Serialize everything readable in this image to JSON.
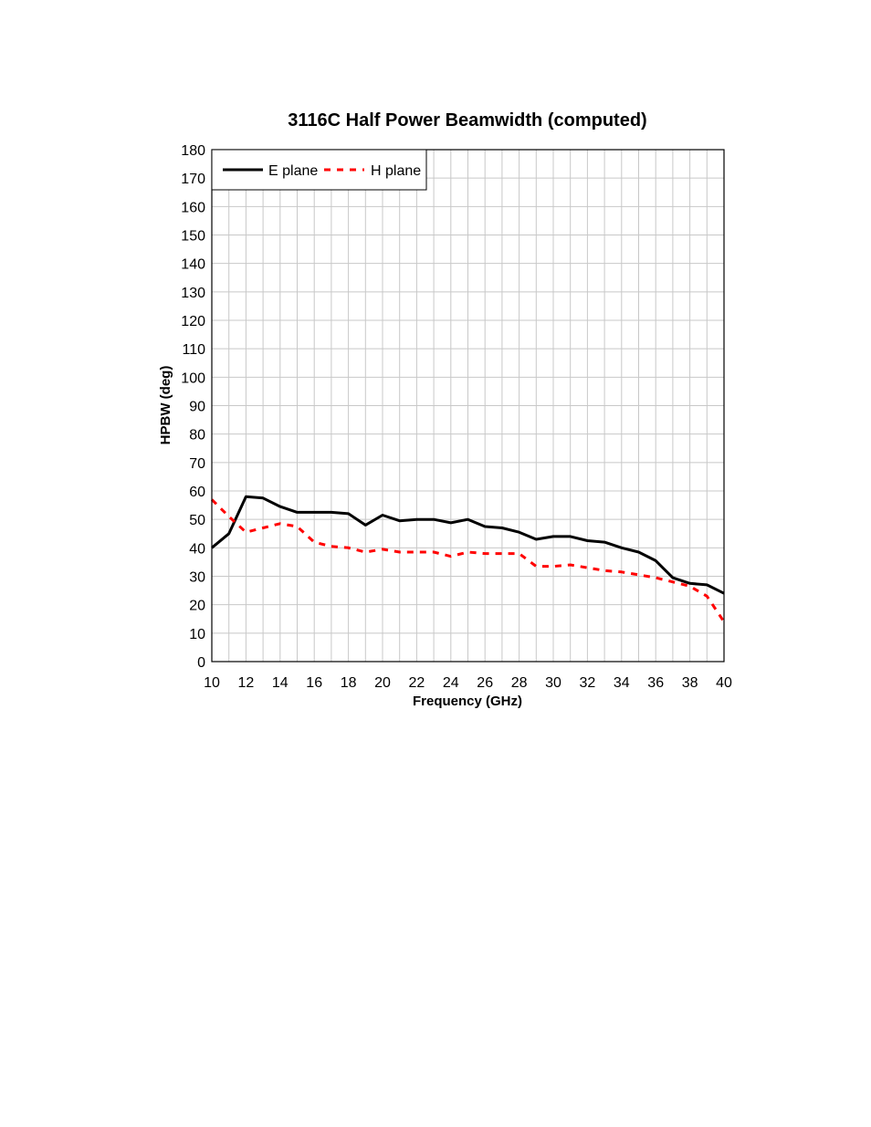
{
  "chart_data": {
    "type": "line",
    "title": "3116C Half Power Beamwidth (computed)",
    "xlabel": "Frequency (GHz)",
    "ylabel": "HPBW (deg)",
    "xlim": [
      10,
      40
    ],
    "ylim": [
      0,
      180
    ],
    "x_ticks": [
      10,
      12,
      14,
      16,
      18,
      20,
      22,
      24,
      26,
      28,
      30,
      32,
      34,
      36,
      38,
      40
    ],
    "y_ticks": [
      0,
      10,
      20,
      30,
      40,
      50,
      60,
      70,
      80,
      90,
      100,
      110,
      120,
      130,
      140,
      150,
      160,
      170,
      180
    ],
    "grid": true,
    "legend_position": "top-left",
    "x": [
      10,
      11,
      12,
      13,
      14,
      15,
      16,
      17,
      18,
      19,
      20,
      21,
      22,
      23,
      24,
      25,
      26,
      27,
      28,
      29,
      30,
      31,
      32,
      33,
      34,
      35,
      36,
      37,
      38,
      39,
      40
    ],
    "series": [
      {
        "name": "E plane",
        "color": "#000000",
        "style": "solid",
        "values": [
          40,
          45,
          58,
          57.5,
          54.5,
          52.5,
          52.5,
          52.5,
          52,
          48,
          51.5,
          49.5,
          50,
          50,
          48.8,
          50,
          47.5,
          47,
          45.5,
          43,
          44,
          44,
          42.5,
          42,
          40,
          38.5,
          35.5,
          29.5,
          27.5,
          27,
          24
        ]
      },
      {
        "name": "H plane",
        "color": "#ff0000",
        "style": "dashed",
        "values": [
          57,
          51,
          45.5,
          47,
          48.5,
          47.5,
          42,
          40.5,
          40,
          38.5,
          39.5,
          38.5,
          38.5,
          38.5,
          37,
          38.5,
          38,
          38,
          38,
          33.5,
          33.5,
          34,
          33,
          32,
          31.5,
          30.5,
          29.5,
          28,
          26.5,
          23,
          14
        ]
      }
    ]
  }
}
